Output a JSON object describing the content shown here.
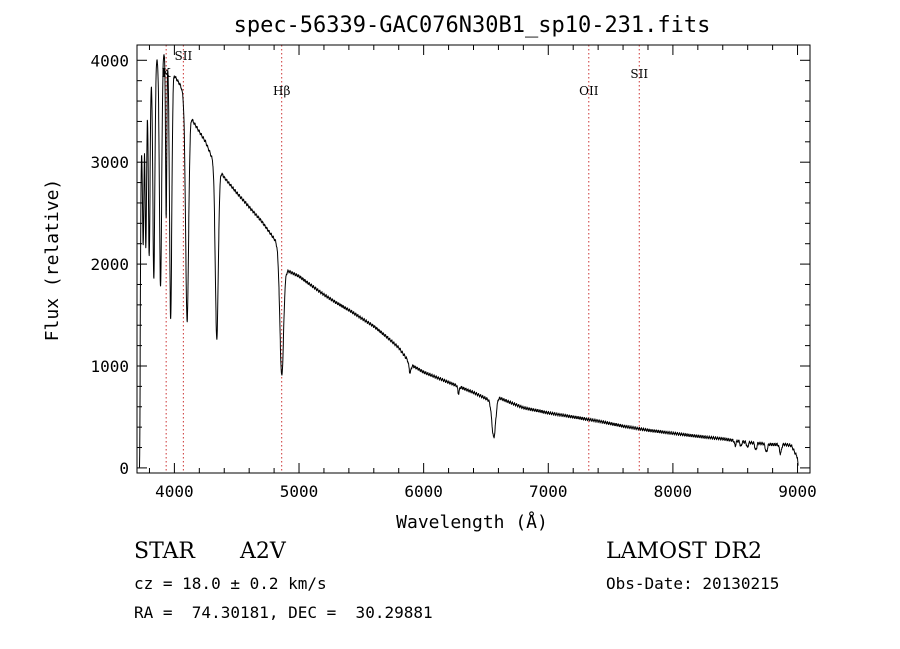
{
  "chart_data": {
    "type": "line",
    "title": "spec-56339-GAC076N30B1_sp10-231.fits",
    "xlabel": "Wavelength (Å)",
    "ylabel": "Flux (relative)",
    "xlim": [
      3700,
      9100
    ],
    "ylim": [
      -50,
      4150
    ],
    "xticks": [
      4000,
      5000,
      6000,
      7000,
      8000,
      9000
    ],
    "yticks": [
      0,
      1000,
      2000,
      3000,
      4000
    ],
    "grid": false,
    "line_color": "#000000",
    "marker_color": "#cc3333",
    "continuum": [
      [
        3720,
        2900
      ],
      [
        3760,
        3700
      ],
      [
        3800,
        3900
      ],
      [
        3850,
        4000
      ],
      [
        3900,
        4100
      ],
      [
        3950,
        4050
      ],
      [
        4000,
        3850
      ],
      [
        4050,
        3750
      ],
      [
        4100,
        3550
      ],
      [
        4150,
        3400
      ],
      [
        4200,
        3300
      ],
      [
        4250,
        3200
      ],
      [
        4300,
        3050
      ],
      [
        4400,
        2850
      ],
      [
        4500,
        2700
      ],
      [
        4600,
        2560
      ],
      [
        4700,
        2420
      ],
      [
        4800,
        2250
      ],
      [
        4850,
        2150
      ],
      [
        4900,
        1940
      ],
      [
        5000,
        1880
      ],
      [
        5100,
        1790
      ],
      [
        5200,
        1700
      ],
      [
        5300,
        1620
      ],
      [
        5400,
        1550
      ],
      [
        5500,
        1470
      ],
      [
        5600,
        1390
      ],
      [
        5700,
        1290
      ],
      [
        5800,
        1180
      ],
      [
        5900,
        1010
      ],
      [
        6000,
        940
      ],
      [
        6200,
        840
      ],
      [
        6400,
        740
      ],
      [
        6550,
        650
      ],
      [
        6600,
        690
      ],
      [
        6800,
        590
      ],
      [
        7000,
        540
      ],
      [
        7200,
        500
      ],
      [
        7400,
        460
      ],
      [
        7600,
        410
      ],
      [
        7800,
        370
      ],
      [
        8000,
        340
      ],
      [
        8200,
        310
      ],
      [
        8400,
        285
      ],
      [
        8600,
        250
      ],
      [
        8800,
        230
      ],
      [
        8900,
        230
      ],
      [
        8950,
        220
      ],
      [
        9000,
        100
      ],
      [
        9005,
        0
      ]
    ],
    "absorption_lines": [
      {
        "w": 3720,
        "depth": 2900,
        "width": 6
      },
      {
        "w": 3750,
        "depth": 1300,
        "width": 6
      },
      {
        "w": 3771,
        "depth": 1600,
        "width": 6
      },
      {
        "w": 3798,
        "depth": 1800,
        "width": 7
      },
      {
        "w": 3835,
        "depth": 2100,
        "width": 8
      },
      {
        "w": 3889,
        "depth": 2300,
        "width": 9
      },
      {
        "w": 3934,
        "depth": 1600,
        "width": 5
      },
      {
        "w": 3970,
        "depth": 2500,
        "width": 9
      },
      {
        "w": 4102,
        "depth": 2100,
        "width": 12
      },
      {
        "w": 4340,
        "depth": 1700,
        "width": 12
      },
      {
        "w": 4861,
        "depth": 1200,
        "width": 15
      },
      {
        "w": 5890,
        "depth": 90,
        "width": 8
      },
      {
        "w": 6280,
        "depth": 70,
        "width": 6
      },
      {
        "w": 6563,
        "depth": 360,
        "width": 15
      },
      {
        "w": 8500,
        "depth": 50,
        "width": 6
      },
      {
        "w": 8545,
        "depth": 50,
        "width": 6
      },
      {
        "w": 8598,
        "depth": 50,
        "width": 6
      },
      {
        "w": 8665,
        "depth": 70,
        "width": 7
      },
      {
        "w": 8750,
        "depth": 80,
        "width": 8
      },
      {
        "w": 8863,
        "depth": 90,
        "width": 8
      }
    ],
    "line_markers": [
      {
        "label": "K",
        "wavelength": 3934
      },
      {
        "label": "SII",
        "wavelength": 4072
      },
      {
        "label": "Hβ",
        "wavelength": 4861
      },
      {
        "label": "OII",
        "wavelength": 7325
      },
      {
        "label": "SII",
        "wavelength": 7730
      }
    ]
  },
  "info": {
    "object_class": "STAR",
    "subclass": "A2V",
    "survey": "LAMOST DR2",
    "cz": "cz = 18.0 ± 0.2 km/s",
    "obs_date": "Obs-Date: 20130215",
    "coords": "RA =  74.30181, DEC =  30.29881"
  }
}
